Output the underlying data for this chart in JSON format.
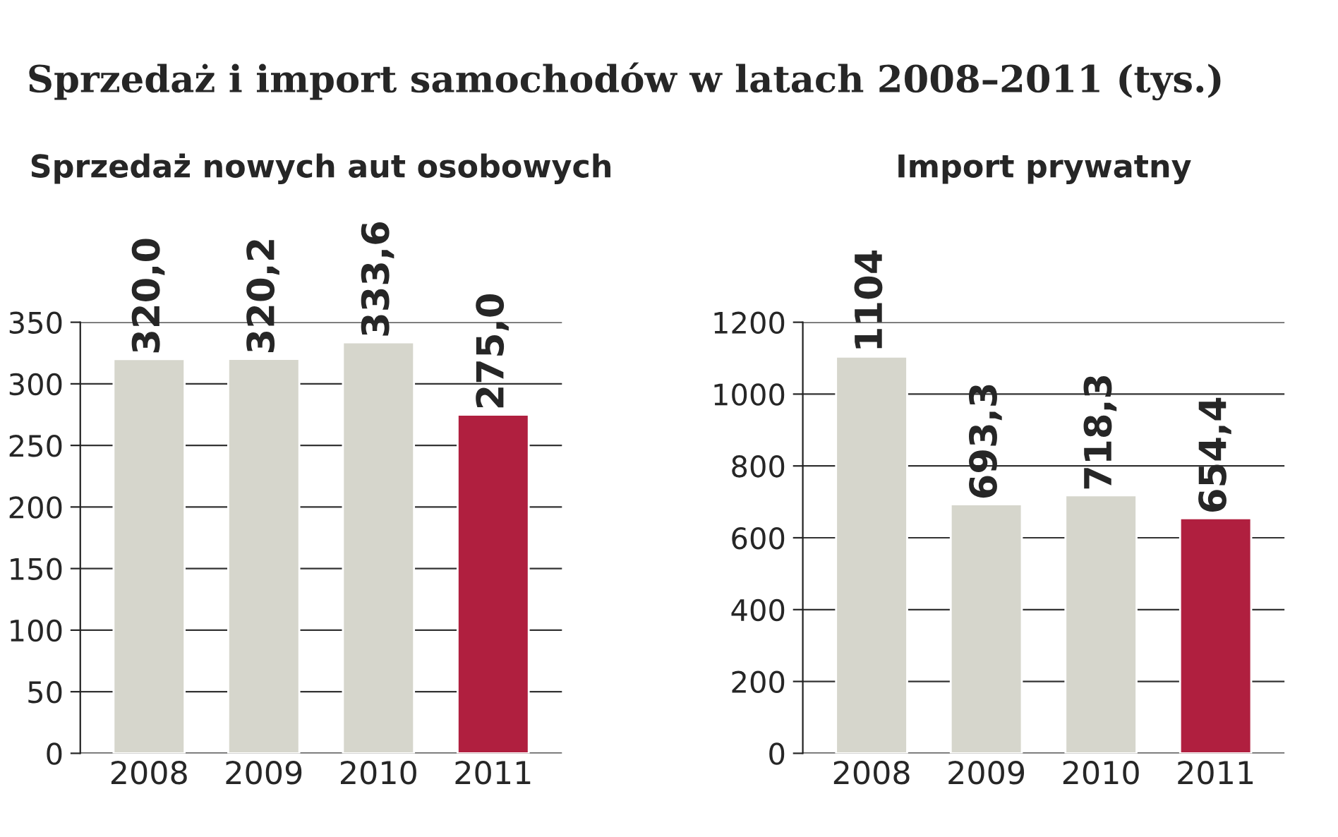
{
  "chart_data": [
    {
      "type": "bar",
      "title": "Sprzedaż nowych aut osobowych",
      "annotations": [
        "Sprzedaż i import samochodów w latach 2008–2011 (tys.)"
      ],
      "categories": [
        "2008",
        "2009",
        "2010",
        "2011"
      ],
      "values": [
        320.0,
        320.2,
        333.6,
        275.0
      ],
      "value_labels": [
        "320,0",
        "320,2",
        "333,6",
        "275,0"
      ],
      "colors": [
        "#d6d6cc",
        "#d6d6cc",
        "#d6d6cc",
        "#b01f3f"
      ],
      "ylim": [
        0,
        350
      ],
      "yticks": [
        0,
        50,
        100,
        150,
        200,
        250,
        300,
        350
      ],
      "grid": "y"
    },
    {
      "type": "bar",
      "title": "Import prywatny",
      "categories": [
        "2008",
        "2009",
        "2010",
        "2011"
      ],
      "values": [
        1104,
        693.3,
        718.3,
        654.4
      ],
      "value_labels": [
        "1104",
        "693,3",
        "718,3",
        "654,4"
      ],
      "colors": [
        "#d6d6cc",
        "#d6d6cc",
        "#d6d6cc",
        "#b01f3f"
      ],
      "ylim": [
        0,
        1200
      ],
      "yticks": [
        0,
        200,
        400,
        600,
        800,
        1000,
        1200
      ],
      "grid": "y"
    }
  ]
}
